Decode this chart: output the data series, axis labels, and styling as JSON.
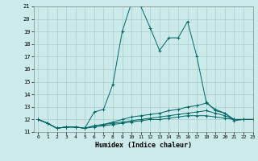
{
  "title": "",
  "xlabel": "Humidex (Indice chaleur)",
  "ylabel": "",
  "bg_color": "#cceaea",
  "grid_color": "#aacccc",
  "line_color": "#006666",
  "x_min": 0,
  "x_max": 23,
  "y_min": 11,
  "y_max": 21,
  "yticks": [
    11,
    12,
    13,
    14,
    15,
    16,
    17,
    18,
    19,
    20,
    21
  ],
  "xticks": [
    0,
    1,
    2,
    3,
    4,
    5,
    6,
    7,
    8,
    9,
    10,
    11,
    12,
    13,
    14,
    15,
    16,
    17,
    18,
    19,
    20,
    21,
    22,
    23
  ],
  "series": [
    [
      12.0,
      11.7,
      11.3,
      11.4,
      11.4,
      11.3,
      12.6,
      12.8,
      14.8,
      19.0,
      21.3,
      21.0,
      19.3,
      17.5,
      18.5,
      18.5,
      19.8,
      17.0,
      13.4,
      12.7,
      12.5,
      11.9,
      12.0,
      12.0
    ],
    [
      12.0,
      11.7,
      11.3,
      11.4,
      11.4,
      11.3,
      11.5,
      11.6,
      11.8,
      12.0,
      12.2,
      12.3,
      12.4,
      12.5,
      12.7,
      12.8,
      13.0,
      13.1,
      13.3,
      12.8,
      12.5,
      12.0,
      12.0,
      12.0
    ],
    [
      12.0,
      11.7,
      11.3,
      11.4,
      11.4,
      11.3,
      11.5,
      11.6,
      11.7,
      11.8,
      11.9,
      12.0,
      12.1,
      12.2,
      12.3,
      12.4,
      12.5,
      12.6,
      12.7,
      12.5,
      12.3,
      12.0,
      12.0,
      12.0
    ],
    [
      12.0,
      11.7,
      11.3,
      11.4,
      11.4,
      11.3,
      11.4,
      11.5,
      11.6,
      11.7,
      11.8,
      11.9,
      12.0,
      12.0,
      12.1,
      12.2,
      12.3,
      12.3,
      12.3,
      12.2,
      12.1,
      12.0,
      12.0,
      12.0
    ]
  ]
}
